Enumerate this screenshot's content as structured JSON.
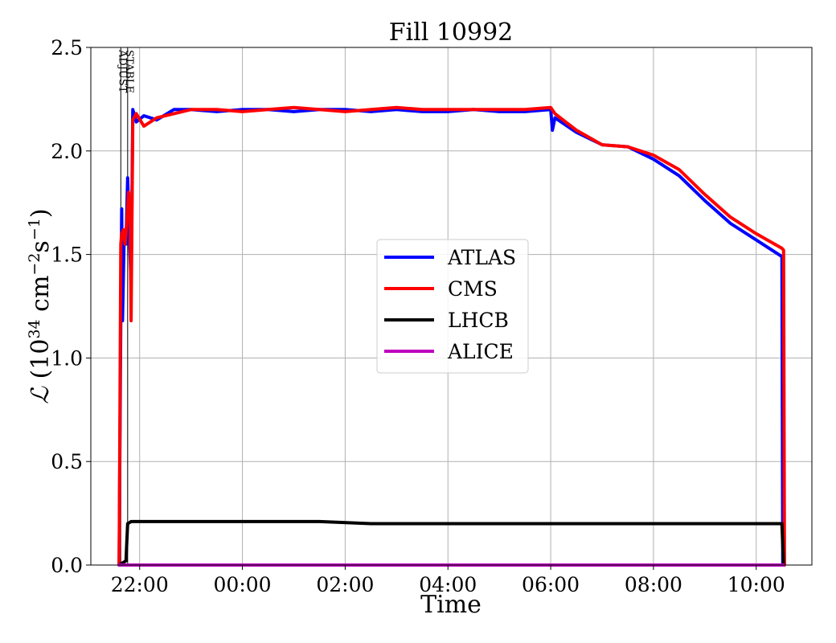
{
  "chart_data": {
    "type": "line",
    "title": "Fill 10992",
    "xlabel": "Time",
    "ylabel": "ℒ (10³⁴ cm⁻²s⁻¹)",
    "ylabel_parts": {
      "sym": "ℒ",
      "open": " (10",
      "exp1": "34",
      "cm": " cm",
      "exp2": "−2",
      "s": "s",
      "exp3": "−1",
      "close": ")"
    },
    "xlim": [
      "21:03",
      "11:05"
    ],
    "ylim": [
      0.0,
      2.5
    ],
    "x_unit": "hours since 00:00 (negative = previous evening)",
    "xticks": [
      "22:00",
      "00:00",
      "02:00",
      "04:00",
      "06:00",
      "08:00",
      "10:00"
    ],
    "yticks": [
      "0.0",
      "0.5",
      "1.0",
      "1.5",
      "2.0",
      "2.5"
    ],
    "grid": true,
    "legend_position": "center",
    "phase_markers": [
      {
        "label": "ADJUST",
        "time": "21:38"
      },
      {
        "label": "STABLE",
        "time": "21:46"
      }
    ],
    "series": [
      {
        "name": "ATLAS",
        "color": "#0000ff",
        "points": [
          [
            "21:36",
            0.0
          ],
          [
            "21:38",
            1.2
          ],
          [
            "21:39",
            1.72
          ],
          [
            "21:40",
            1.18
          ],
          [
            "21:42",
            1.6
          ],
          [
            "21:44",
            1.55
          ],
          [
            "21:46",
            1.87
          ],
          [
            "21:48",
            1.6
          ],
          [
            "21:50",
            1.35
          ],
          [
            "21:52",
            2.2
          ],
          [
            "21:56",
            2.14
          ],
          [
            "22:05",
            2.17
          ],
          [
            "22:20",
            2.15
          ],
          [
            "22:40",
            2.2
          ],
          [
            "23:00",
            2.2
          ],
          [
            "23:30",
            2.19
          ],
          [
            "00:00",
            2.2
          ],
          [
            "00:30",
            2.2
          ],
          [
            "01:00",
            2.19
          ],
          [
            "01:30",
            2.2
          ],
          [
            "02:00",
            2.2
          ],
          [
            "02:30",
            2.19
          ],
          [
            "03:00",
            2.2
          ],
          [
            "03:30",
            2.19
          ],
          [
            "04:00",
            2.19
          ],
          [
            "04:30",
            2.2
          ],
          [
            "05:00",
            2.19
          ],
          [
            "05:30",
            2.19
          ],
          [
            "06:00",
            2.2
          ],
          [
            "06:02",
            2.1
          ],
          [
            "06:05",
            2.16
          ],
          [
            "06:30",
            2.09
          ],
          [
            "07:00",
            2.03
          ],
          [
            "07:30",
            2.02
          ],
          [
            "08:00",
            1.96
          ],
          [
            "08:30",
            1.88
          ],
          [
            "09:00",
            1.76
          ],
          [
            "09:30",
            1.65
          ],
          [
            "10:00",
            1.57
          ],
          [
            "10:30",
            1.49
          ],
          [
            "10:31",
            0.0
          ]
        ]
      },
      {
        "name": "CMS",
        "color": "#ff0000",
        "points": [
          [
            "21:36",
            0.0
          ],
          [
            "21:38",
            1.55
          ],
          [
            "21:39",
            1.6
          ],
          [
            "21:41",
            1.62
          ],
          [
            "21:43",
            1.55
          ],
          [
            "21:45",
            1.65
          ],
          [
            "21:47",
            1.8
          ],
          [
            "21:49",
            1.68
          ],
          [
            "21:50",
            1.18
          ],
          [
            "21:52",
            2.15
          ],
          [
            "21:56",
            2.18
          ],
          [
            "22:05",
            2.12
          ],
          [
            "22:20",
            2.16
          ],
          [
            "22:40",
            2.18
          ],
          [
            "23:00",
            2.2
          ],
          [
            "23:30",
            2.2
          ],
          [
            "00:00",
            2.19
          ],
          [
            "00:30",
            2.2
          ],
          [
            "01:00",
            2.21
          ],
          [
            "01:30",
            2.2
          ],
          [
            "02:00",
            2.19
          ],
          [
            "02:30",
            2.2
          ],
          [
            "03:00",
            2.21
          ],
          [
            "03:30",
            2.2
          ],
          [
            "04:00",
            2.2
          ],
          [
            "04:30",
            2.2
          ],
          [
            "05:00",
            2.2
          ],
          [
            "05:30",
            2.2
          ],
          [
            "06:00",
            2.21
          ],
          [
            "06:05",
            2.18
          ],
          [
            "06:30",
            2.1
          ],
          [
            "07:00",
            2.03
          ],
          [
            "07:30",
            2.02
          ],
          [
            "08:00",
            1.98
          ],
          [
            "08:30",
            1.91
          ],
          [
            "09:00",
            1.79
          ],
          [
            "09:30",
            1.68
          ],
          [
            "10:00",
            1.6
          ],
          [
            "10:30",
            1.53
          ],
          [
            "10:32",
            1.52
          ],
          [
            "10:33",
            0.0
          ]
        ]
      },
      {
        "name": "LHCB",
        "color": "#000000",
        "points": [
          [
            "21:36",
            0.0
          ],
          [
            "21:44",
            0.02
          ],
          [
            "21:46",
            0.2
          ],
          [
            "21:50",
            0.21
          ],
          [
            "22:30",
            0.21
          ],
          [
            "23:30",
            0.21
          ],
          [
            "00:30",
            0.21
          ],
          [
            "01:30",
            0.21
          ],
          [
            "02:30",
            0.2
          ],
          [
            "03:30",
            0.2
          ],
          [
            "04:30",
            0.2
          ],
          [
            "05:30",
            0.2
          ],
          [
            "06:30",
            0.2
          ],
          [
            "07:30",
            0.2
          ],
          [
            "08:30",
            0.2
          ],
          [
            "09:30",
            0.2
          ],
          [
            "10:30",
            0.2
          ],
          [
            "10:32",
            0.0
          ]
        ]
      },
      {
        "name": "ALICE",
        "color": "#bf00bf",
        "points": [
          [
            "21:36",
            0.0
          ],
          [
            "10:32",
            0.0
          ]
        ]
      }
    ]
  }
}
